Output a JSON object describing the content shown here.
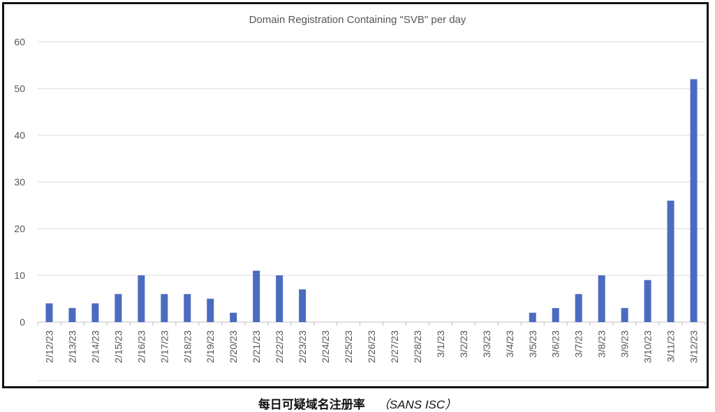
{
  "chart_data": {
    "type": "bar",
    "title": "Domain Registration Containing \"SVB\" per day",
    "xlabel": "",
    "ylabel": "",
    "ylim": [
      0,
      60
    ],
    "yticks": [
      0,
      10,
      20,
      30,
      40,
      50,
      60
    ],
    "grid": true,
    "legend": "none",
    "bar_color": "#4a6bbf",
    "categories": [
      "2/12/23",
      "2/13/23",
      "2/14/23",
      "2/15/23",
      "2/16/23",
      "2/17/23",
      "2/18/23",
      "2/19/23",
      "2/20/23",
      "2/21/23",
      "2/22/23",
      "2/23/23",
      "2/24/23",
      "2/25/23",
      "2/26/23",
      "2/27/23",
      "2/28/23",
      "3/1/23",
      "3/2/23",
      "3/3/23",
      "3/4/23",
      "3/5/23",
      "3/6/23",
      "3/7/23",
      "3/8/23",
      "3/9/23",
      "3/10/23",
      "3/11/23",
      "3/12/23"
    ],
    "values": [
      4,
      3,
      4,
      6,
      10,
      6,
      6,
      5,
      2,
      11,
      10,
      7,
      0,
      0,
      0,
      0,
      0,
      0,
      0,
      0,
      0,
      2,
      3,
      6,
      10,
      3,
      9,
      26,
      52
    ]
  },
  "caption": {
    "text": "每日可疑域名注册率",
    "source": "（SANS ISC）"
  }
}
